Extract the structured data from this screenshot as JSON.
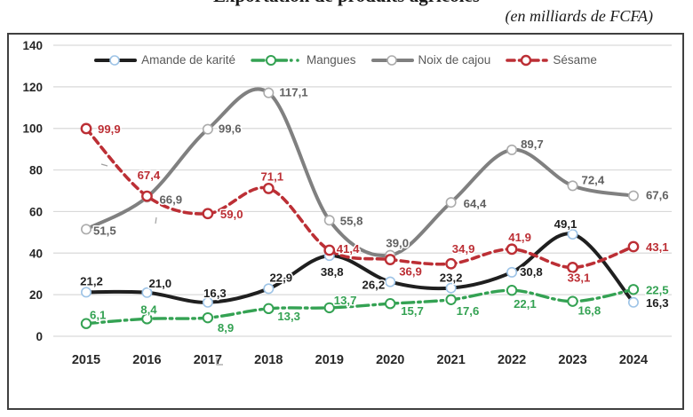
{
  "title": "Exportation de produits agricoles",
  "subtitle": "(en milliards de FCFA)",
  "chart_data": {
    "type": "line",
    "title": "Exportation de produits agricoles",
    "subtitle": "(en milliards de FCFA)",
    "categories": [
      "2015",
      "2016",
      "2017",
      "2018",
      "2019",
      "2020",
      "2021",
      "2022",
      "2023",
      "2024"
    ],
    "series": [
      {
        "name": "Amande de karité",
        "color": "#1f1f1f",
        "marker_color": "#9dc3e6",
        "label_color": "#1f1f1f",
        "style": "solid",
        "values": [
          21.2,
          21.0,
          16.3,
          22.9,
          38.8,
          26.2,
          23.2,
          30.8,
          49.1,
          16.3
        ]
      },
      {
        "name": "Mangues",
        "color": "#34a253",
        "marker_color": "#34a253",
        "label_color": "#34a253",
        "style": "dashdot",
        "values": [
          6.1,
          8.4,
          8.9,
          13.3,
          13.7,
          15.7,
          17.6,
          22.1,
          16.8,
          22.5
        ]
      },
      {
        "name": "Noix de cajou",
        "color": "#808080",
        "marker_color": "#ababab",
        "label_color": "#616161",
        "style": "solid",
        "values": [
          51.5,
          66.9,
          99.6,
          117.1,
          55.8,
          39.0,
          64.4,
          89.7,
          72.4,
          67.6
        ]
      },
      {
        "name": "Sésame",
        "color": "#bc2f35",
        "marker_color": "#bc2f35",
        "label_color": "#bc2f35",
        "style": "dashed",
        "values": [
          99.9,
          67.4,
          59.0,
          71.1,
          41.4,
          36.9,
          34.9,
          41.9,
          33.1,
          43.1
        ]
      }
    ],
    "decimal_separator": ",",
    "ylim": [
      0,
      140
    ],
    "ytick_step": 20,
    "yticks": [
      "0",
      "20",
      "40",
      "60",
      "80",
      "100",
      "120",
      "140"
    ],
    "grid": true,
    "legend_position": "top",
    "colors": {
      "grid": "#d9d9d9",
      "axis_text": "#262626",
      "legend_text": "#595959",
      "frame_border": "#404040",
      "label_halo": "#ffffff"
    }
  }
}
